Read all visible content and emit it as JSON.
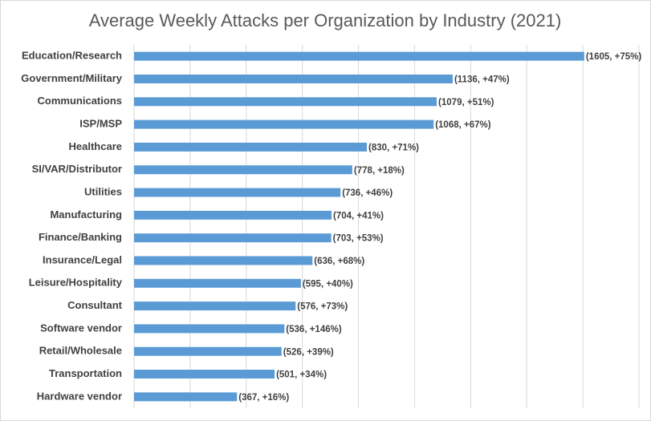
{
  "chart_data": {
    "type": "bar",
    "orientation": "horizontal",
    "title": "Average Weekly Attacks per Organization by Industry (2021)",
    "categories": [
      "Education/Research",
      "Government/Military",
      "Communications",
      "ISP/MSP",
      "Healthcare",
      "SI/VAR/Distributor",
      "Utilities",
      "Manufacturing",
      "Finance/Banking",
      "Insurance/Legal",
      "Leisure/Hospitality",
      "Consultant",
      "Software vendor",
      "Retail/Wholesale",
      "Transportation",
      "Hardware vendor"
    ],
    "values": [
      1605,
      1136,
      1079,
      1068,
      830,
      778,
      736,
      704,
      703,
      636,
      595,
      576,
      536,
      526,
      501,
      367
    ],
    "value_labels": [
      "(1605, +75%)",
      "(1136, +47%)",
      "(1079, +51%)",
      "(1068, +67%)",
      "(830, +71%)",
      "(778, +18%)",
      "(736, +46%)",
      "(704, +41%)",
      "(703, +53%)",
      "(636, +68%)",
      "(595, +40%)",
      "(576, +73%)",
      "(536, +146%)",
      "(526, +39%)",
      "(501, +34%)",
      "(367, +16%)"
    ],
    "color": "#5b9bd5",
    "xlim": [
      0,
      1800
    ],
    "xticks": [
      0,
      200,
      400,
      600,
      800,
      1000,
      1200,
      1400,
      1600,
      1800
    ],
    "grid": true
  }
}
